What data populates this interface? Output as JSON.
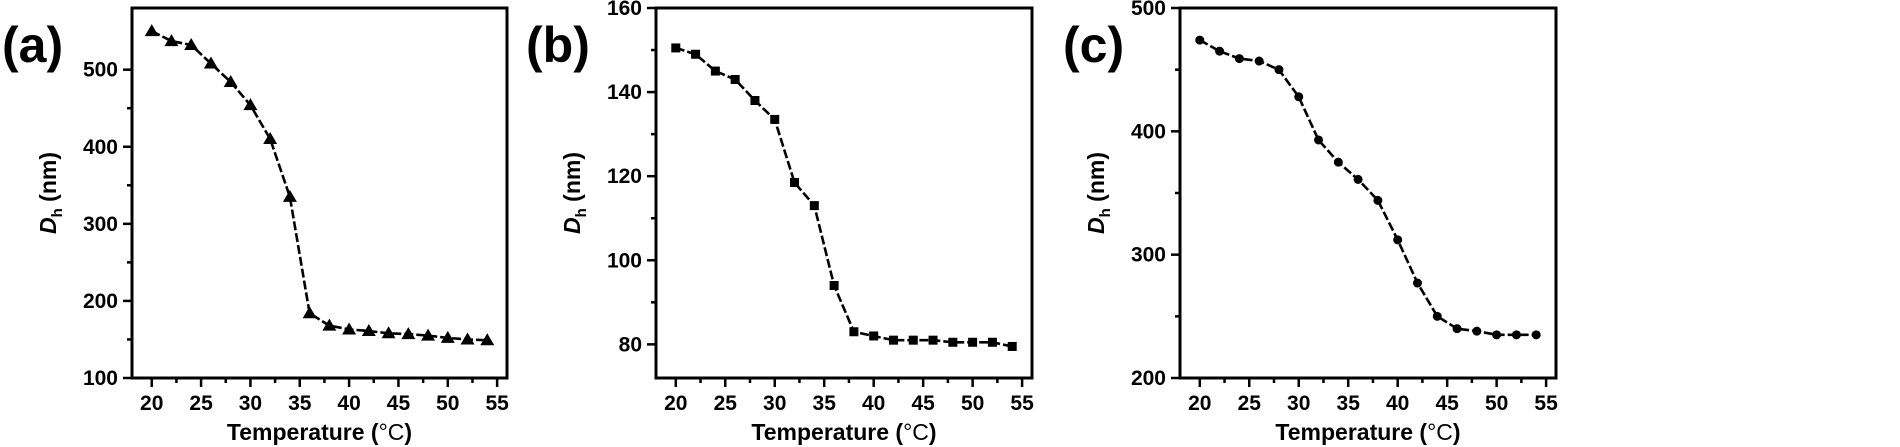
{
  "chart_data": [
    {
      "type": "line",
      "panel_label": "(a)",
      "xlabel_main": "Temperature (",
      "xlabel_unit": "°C",
      "xlabel_close": ")",
      "ylabel_main": "D",
      "ylabel_sub": "h",
      "ylabel_unit": " (nm)",
      "xlim": [
        18,
        56
      ],
      "ylim": [
        100,
        580
      ],
      "xticks": [
        20,
        25,
        30,
        35,
        40,
        45,
        50,
        55
      ],
      "yticks": [
        100,
        200,
        300,
        400,
        500
      ],
      "marker": "triangle",
      "line_style": "dashed",
      "color": "#000000",
      "series": [
        {
          "x": [
            20,
            22,
            24,
            26,
            28,
            30,
            32,
            34,
            36,
            38,
            40,
            42,
            44,
            46,
            48,
            50,
            52,
            54
          ],
          "y": [
            550,
            537,
            532,
            508,
            484,
            454,
            410,
            335,
            184,
            168,
            163,
            161,
            158,
            157,
            155,
            152,
            150,
            149
          ]
        }
      ]
    },
    {
      "type": "line",
      "panel_label": "(b)",
      "xlabel_main": "Temperature (",
      "xlabel_unit": "°C",
      "xlabel_close": ")",
      "ylabel_main": "D",
      "ylabel_sub": "h",
      "ylabel_unit": " (nm)",
      "xlim": [
        18,
        56
      ],
      "ylim": [
        72,
        160
      ],
      "xticks": [
        20,
        25,
        30,
        35,
        40,
        45,
        50,
        55
      ],
      "yticks": [
        80,
        100,
        120,
        140,
        160
      ],
      "marker": "square",
      "line_style": "dashed",
      "color": "#000000",
      "series": [
        {
          "x": [
            20,
            22,
            24,
            26,
            28,
            30,
            32,
            34,
            36,
            38,
            40,
            42,
            44,
            46,
            48,
            50,
            52,
            54
          ],
          "y": [
            150.5,
            149,
            145,
            143,
            138,
            133.5,
            118.5,
            113,
            94,
            83,
            82,
            81,
            81,
            81,
            80.5,
            80.5,
            80.5,
            79.5
          ]
        }
      ]
    },
    {
      "type": "line",
      "panel_label": "(c)",
      "xlabel_main": "Temperature (",
      "xlabel_unit": "°C",
      "xlabel_close": ")",
      "ylabel_main": "D",
      "ylabel_sub": "h",
      "ylabel_unit": " (nm)",
      "xlim": [
        18,
        56
      ],
      "ylim": [
        200,
        500
      ],
      "xticks": [
        20,
        25,
        30,
        35,
        40,
        45,
        50,
        55
      ],
      "yticks": [
        200,
        300,
        400,
        500
      ],
      "marker": "circle",
      "line_style": "dashed",
      "color": "#000000",
      "series": [
        {
          "x": [
            20,
            22,
            24,
            26,
            28,
            30,
            32,
            34,
            36,
            38,
            40,
            42,
            44,
            46,
            48,
            50,
            52,
            54
          ],
          "y": [
            474,
            465,
            459,
            457,
            450,
            428,
            393,
            375,
            361,
            344,
            312,
            277,
            250,
            240,
            238,
            235,
            235,
            235
          ]
        }
      ]
    }
  ]
}
